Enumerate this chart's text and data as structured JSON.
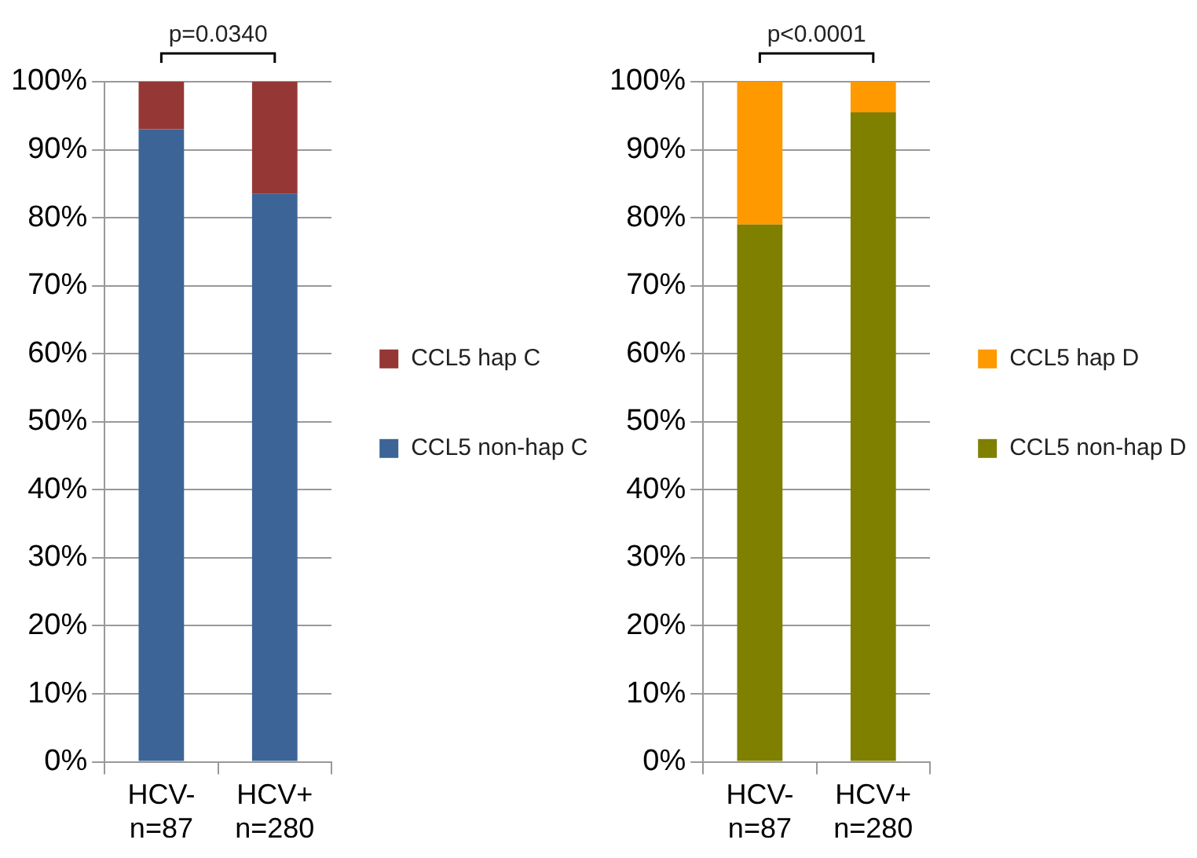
{
  "chart_data": [
    {
      "type": "bar",
      "stacked": true,
      "categories": [
        "HCV-\nn=87",
        "HCV+\nn=280"
      ],
      "series": [
        {
          "name": "CCL5 non-hap C",
          "color": "#3c6496",
          "values": [
            93,
            83.5
          ]
        },
        {
          "name": "CCL5 hap C",
          "color": "#953735",
          "values": [
            7,
            16.5
          ]
        }
      ],
      "ylim": [
        0,
        100
      ],
      "yticks": [
        {
          "value": 0,
          "label": "0%"
        },
        {
          "value": 10,
          "label": "10%"
        },
        {
          "value": 20,
          "label": "20%"
        },
        {
          "value": 30,
          "label": "30%"
        },
        {
          "value": 40,
          "label": "40%"
        },
        {
          "value": 50,
          "label": "50%"
        },
        {
          "value": 60,
          "label": "60%"
        },
        {
          "value": 70,
          "label": "70%"
        },
        {
          "value": 80,
          "label": "80%"
        },
        {
          "value": 90,
          "label": "90%"
        },
        {
          "value": 100,
          "label": "100%"
        }
      ],
      "grid": "y",
      "legend": "right",
      "annotations": [
        "p=0.0340"
      ]
    },
    {
      "type": "bar",
      "stacked": true,
      "categories": [
        "HCV-\nn=87",
        "HCV+\nn=280"
      ],
      "series": [
        {
          "name": "CCL5 non-hap D",
          "color": "#7f7f00",
          "values": [
            79,
            95.5
          ]
        },
        {
          "name": "CCL5 hap D",
          "color": "#ff9900",
          "values": [
            21,
            4.5
          ]
        }
      ],
      "ylim": [
        0,
        100
      ],
      "yticks": [
        {
          "value": 0,
          "label": "0%"
        },
        {
          "value": 10,
          "label": "10%"
        },
        {
          "value": 20,
          "label": "20%"
        },
        {
          "value": 30,
          "label": "30%"
        },
        {
          "value": 40,
          "label": "40%"
        },
        {
          "value": 50,
          "label": "50%"
        },
        {
          "value": 60,
          "label": "60%"
        },
        {
          "value": 70,
          "label": "70%"
        },
        {
          "value": 80,
          "label": "80%"
        },
        {
          "value": 90,
          "label": "90%"
        },
        {
          "value": 100,
          "label": "100%"
        }
      ],
      "grid": "y",
      "legend": "right",
      "annotations": [
        "p<0.0001"
      ]
    }
  ]
}
